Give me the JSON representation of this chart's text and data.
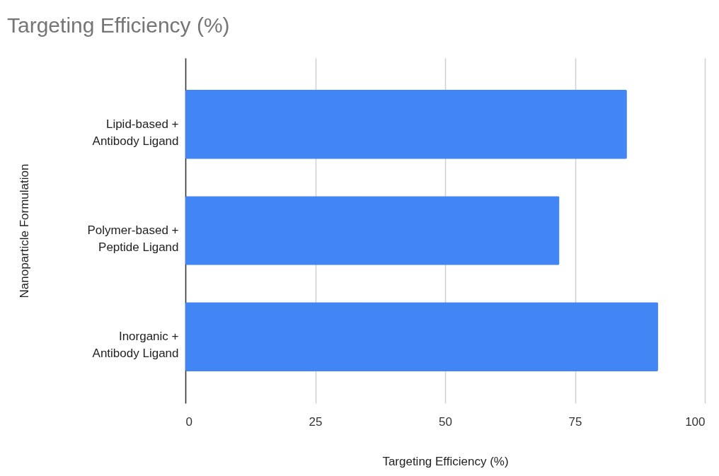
{
  "chart_data": {
    "type": "bar",
    "orientation": "horizontal",
    "title": "Targeting Efficiency (%)",
    "xlabel": "Targeting Efficiency (%)",
    "ylabel": "Nanoparticle Formulation",
    "categories": [
      "Lipid-based + Antibody Ligand",
      "Polymer-based + Peptide Ligand",
      "Inorganic + Antibody Ligand"
    ],
    "values": [
      85,
      72,
      91
    ],
    "color": "#4285f4",
    "xlim": [
      0,
      100
    ],
    "xticks": [
      0,
      25,
      50,
      75,
      100
    ],
    "grid": "x"
  }
}
